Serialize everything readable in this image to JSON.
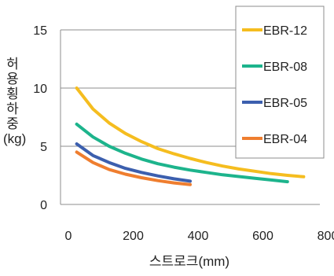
{
  "chart_data": {
    "type": "line",
    "xlabel": "스트로크(mm)",
    "ylabel": "허용횡하중",
    "yunit": "(kg)",
    "xlim": [
      0,
      800
    ],
    "ylim": [
      0,
      15
    ],
    "xticks": [
      0,
      200,
      400,
      600,
      800
    ],
    "yticks": [
      0,
      5,
      10,
      15
    ],
    "grid": "horizontal",
    "legend_position": "top-right",
    "series": [
      {
        "name": "EBR-12",
        "color": "#f5bd1f",
        "x": [
          50,
          100,
          150,
          200,
          250,
          300,
          350,
          400,
          450,
          500,
          550,
          600,
          650,
          700,
          750
        ],
        "y": [
          10.0,
          8.2,
          7.0,
          6.1,
          5.4,
          4.8,
          4.35,
          3.95,
          3.6,
          3.3,
          3.05,
          2.85,
          2.65,
          2.5,
          2.38
        ]
      },
      {
        "name": "EBR-08",
        "color": "#1db48c",
        "x": [
          50,
          100,
          150,
          200,
          250,
          300,
          350,
          400,
          450,
          500,
          550,
          600,
          650,
          700
        ],
        "y": [
          6.9,
          5.8,
          5.0,
          4.4,
          3.9,
          3.5,
          3.2,
          2.95,
          2.75,
          2.55,
          2.4,
          2.25,
          2.1,
          1.95
        ]
      },
      {
        "name": "EBR-05",
        "color": "#3c5fae",
        "x": [
          50,
          100,
          150,
          200,
          250,
          300,
          350,
          400
        ],
        "y": [
          5.2,
          4.2,
          3.6,
          3.1,
          2.75,
          2.45,
          2.2,
          2.0
        ]
      },
      {
        "name": "EBR-04",
        "color": "#ef7e2f",
        "x": [
          50,
          100,
          150,
          200,
          250,
          300,
          350,
          400
        ],
        "y": [
          4.5,
          3.6,
          3.0,
          2.6,
          2.3,
          2.05,
          1.85,
          1.7
        ]
      }
    ]
  }
}
